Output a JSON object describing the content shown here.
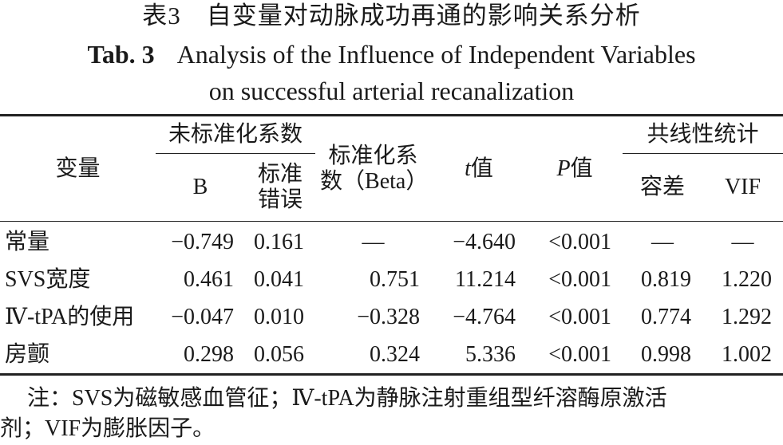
{
  "title_cn": "表3　自变量对动脉成功再通的影响关系分析",
  "title_en_label": "Tab. 3",
  "title_en_line1": "Analysis of the Influence of Independent Variables",
  "title_en_line2": "on successful arterial recanalization",
  "headers": {
    "variable": "变量",
    "unstd_group": "未标准化系数",
    "b": "B",
    "se": "标准错误",
    "beta": "标准化系数（Beta）",
    "t": "t值",
    "p": "P值",
    "collinearity_group": "共线性统计",
    "tolerance": "容差",
    "vif": "VIF"
  },
  "rows": [
    {
      "variable": "常量",
      "b": "−0.749",
      "se": "0.161",
      "beta": "—",
      "t": "−4.640",
      "p": "<0.001",
      "tolerance": "—",
      "vif": "—"
    },
    {
      "variable": "SVS宽度",
      "b": "0.461",
      "se": "0.041",
      "beta": "0.751",
      "t": "11.214",
      "p": "<0.001",
      "tolerance": "0.819",
      "vif": "1.220"
    },
    {
      "variable": "Ⅳ-tPA的使用",
      "b": "−0.047",
      "se": "0.010",
      "beta": "−0.328",
      "t": "−4.764",
      "p": "<0.001",
      "tolerance": "0.774",
      "vif": "1.292"
    },
    {
      "variable": "房颤",
      "b": "0.298",
      "se": "0.056",
      "beta": "0.324",
      "t": "5.336",
      "p": "<0.001",
      "tolerance": "0.998",
      "vif": "1.002"
    }
  ],
  "note_line1": "注：SVS为磁敏感血管征；Ⅳ-tPA为静脉注射重组型纤溶酶原激活",
  "note_line2": "剂；VIF为膨胀因子。"
}
